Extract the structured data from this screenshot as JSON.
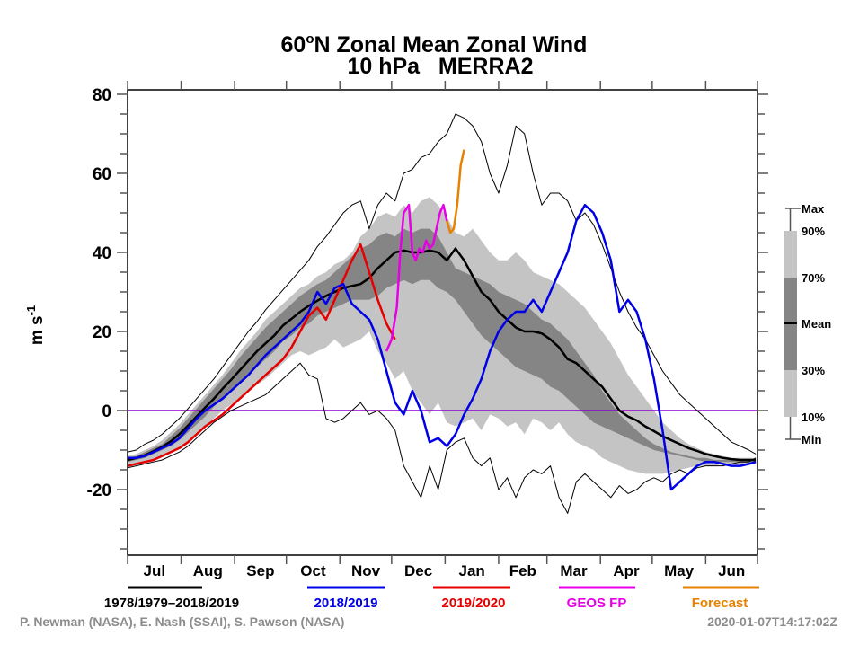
{
  "chart_data": {
    "type": "line",
    "title": "60°N Zonal Mean Zonal Wind",
    "title_line1_prefix": "60",
    "title_line1_degree": "o",
    "title_line1_suffix": "N Zonal Mean Zonal Wind",
    "title_line2": "10 hPa   MERRA2",
    "ylabel_base": "m s",
    "ylabel_exp": "-1",
    "ylim": [
      -36,
      81
    ],
    "yticks": [
      -20,
      0,
      20,
      40,
      60,
      80
    ],
    "yminor_step": 5,
    "x_unit": "day since Jul 1",
    "xlim": [
      0,
      365
    ],
    "months": [
      "Jul",
      "Aug",
      "Sep",
      "Oct",
      "Nov",
      "Dec",
      "Jan",
      "Feb",
      "Mar",
      "Apr",
      "May",
      "Jun"
    ],
    "month_starts": [
      0,
      31,
      62,
      92,
      123,
      153,
      184,
      215,
      243,
      274,
      304,
      335,
      365
    ],
    "zero_line_color": "#8a00d4",
    "band_colors": {
      "outer": "#c4c4c4",
      "inner": "#858585"
    },
    "x": [
      0,
      5,
      10,
      15,
      20,
      25,
      30,
      35,
      40,
      45,
      50,
      55,
      60,
      65,
      70,
      75,
      80,
      85,
      90,
      95,
      100,
      105,
      110,
      115,
      120,
      125,
      130,
      135,
      140,
      145,
      150,
      155,
      160,
      165,
      170,
      175,
      180,
      185,
      190,
      195,
      200,
      205,
      210,
      215,
      220,
      225,
      230,
      235,
      240,
      245,
      250,
      255,
      260,
      265,
      270,
      275,
      280,
      285,
      290,
      295,
      300,
      305,
      310,
      315,
      320,
      325,
      330,
      335,
      340,
      345,
      350,
      355,
      360,
      364
    ],
    "series": [
      {
        "name": "Max",
        "color": "#000000",
        "role": "max",
        "values": [
          -10.5,
          -10,
          -8.5,
          -7.5,
          -6,
          -4,
          -2,
          0.5,
          3,
          5.5,
          8,
          11,
          14,
          17,
          20,
          22.5,
          25.5,
          28,
          30.5,
          33,
          35.5,
          38,
          41.5,
          44,
          47,
          50,
          52,
          53,
          46,
          52,
          55,
          53,
          60,
          61,
          64,
          65,
          68,
          70,
          75,
          74,
          72,
          68,
          60,
          55,
          62,
          72,
          70,
          60,
          52,
          55,
          55,
          53,
          48,
          50,
          47,
          42,
          36,
          30,
          25,
          21,
          18,
          14,
          10,
          7,
          4,
          2,
          0,
          -2,
          -4,
          -6,
          -8,
          -9,
          -10,
          -11
        ]
      },
      {
        "name": "90%",
        "color": "#c4c4c4",
        "role": "p90",
        "values": [
          -11.5,
          -11,
          -10,
          -9,
          -7.5,
          -5.5,
          -3.5,
          -1,
          1.5,
          4,
          6.5,
          9,
          12,
          15,
          17.5,
          20,
          23,
          25,
          27,
          29,
          31,
          32,
          34,
          35,
          37,
          38,
          40,
          44,
          46,
          49,
          50,
          49,
          52,
          50,
          53,
          54,
          52,
          49,
          45,
          44,
          46,
          43,
          40,
          38,
          38,
          40,
          38,
          35,
          34,
          33,
          32,
          30,
          28,
          26,
          23,
          20,
          17,
          13,
          9,
          6,
          3,
          0,
          -3,
          -5,
          -7,
          -8.5,
          -9.5,
          -10.5,
          -11,
          -11.5,
          -12,
          -12,
          -12,
          -12
        ]
      },
      {
        "name": "70%",
        "color": "#858585",
        "role": "p70",
        "values": [
          -12,
          -11.5,
          -10.5,
          -9.5,
          -8.5,
          -6.5,
          -4.5,
          -2,
          0.5,
          3,
          5.5,
          8,
          10.5,
          13.5,
          16,
          18.5,
          21,
          23,
          25,
          27,
          29,
          30.5,
          32,
          33,
          35,
          37,
          39,
          41,
          42,
          44,
          45,
          44,
          46,
          45,
          46,
          46,
          44,
          40,
          36,
          35,
          34,
          33,
          32,
          30,
          29,
          28,
          27,
          25,
          23,
          22,
          20,
          18,
          15,
          12,
          9,
          5,
          2,
          -1,
          -3,
          -5,
          -7,
          -8.5,
          -9.5,
          -10.5,
          -11,
          -11.5,
          -12,
          -12,
          -12.5,
          -12.5,
          -12.5,
          -12.5,
          -12.5,
          -12.5
        ]
      },
      {
        "name": "Mean",
        "color": "#000000",
        "role": "mean",
        "values": [
          -12.5,
          -12,
          -11.3,
          -10.3,
          -9.2,
          -7.8,
          -6,
          -3.8,
          -1.5,
          0.8,
          3,
          5.5,
          7.8,
          10.2,
          12.6,
          15,
          17,
          19,
          21.5,
          23.2,
          25,
          26.5,
          27.8,
          29,
          30,
          31,
          31.5,
          32,
          33.5,
          36,
          38,
          40,
          40.5,
          40,
          40,
          40.5,
          40,
          38,
          41,
          38,
          34,
          30,
          28,
          25,
          23,
          21,
          20,
          20,
          19.5,
          18,
          16,
          13,
          12,
          10,
          8,
          6,
          3,
          0,
          -1.5,
          -2.5,
          -4,
          -5.2,
          -6.5,
          -7.5,
          -8.5,
          -9.5,
          -10.2,
          -11,
          -11.5,
          -12,
          -12.3,
          -12.5,
          -12.5,
          -12.5
        ]
      },
      {
        "name": "30%",
        "color": "#858585",
        "role": "p30",
        "values": [
          -13,
          -12.5,
          -12,
          -11,
          -10,
          -9,
          -7.5,
          -5.5,
          -3.5,
          -1.5,
          1,
          3,
          5,
          7,
          9,
          11,
          13,
          15,
          17.5,
          19,
          21,
          22,
          24,
          25,
          26,
          27,
          28,
          28,
          28,
          29,
          31,
          32,
          33,
          32,
          33,
          33,
          31,
          30,
          28,
          25,
          22,
          19,
          17,
          15,
          13,
          11,
          10,
          9,
          8,
          6,
          5,
          3,
          1,
          -1,
          -3,
          -4,
          -5,
          -6,
          -7,
          -8,
          -9,
          -10,
          -10.5,
          -11,
          -11.5,
          -12,
          -12.5,
          -13,
          -13,
          -13,
          -13,
          -13,
          -13,
          -13
        ]
      },
      {
        "name": "10%",
        "color": "#c4c4c4",
        "role": "p10",
        "values": [
          -14,
          -13.5,
          -13,
          -12.5,
          -11.5,
          -10.5,
          -9.5,
          -8,
          -6,
          -4,
          -2,
          0,
          1.5,
          3,
          5,
          6.5,
          8,
          10,
          12,
          14,
          15,
          14,
          15,
          16,
          18,
          16,
          17,
          18,
          20,
          15,
          12,
          8,
          10,
          5,
          2,
          -1,
          2,
          -3,
          -4,
          -3,
          -2,
          -5,
          -1,
          -2,
          -4,
          -3,
          -6,
          -2,
          -3,
          -5,
          -3,
          -6,
          -8,
          -9,
          -10,
          -12,
          -13,
          -14,
          -15,
          -15.5,
          -16,
          -16,
          -16,
          -15.5,
          -15,
          -14.5,
          -14,
          -14,
          -14,
          -13.5,
          -13.5,
          -13.5,
          -13.5,
          -13.5
        ]
      },
      {
        "name": "Min",
        "color": "#000000",
        "role": "min",
        "values": [
          -14.5,
          -14,
          -13.5,
          -13,
          -12.5,
          -11.5,
          -10.5,
          -9,
          -7,
          -5,
          -3,
          -1.5,
          0,
          1,
          2,
          3,
          4,
          6,
          8,
          10,
          12,
          9,
          8,
          -2,
          -3,
          -2,
          0,
          2,
          -1,
          0,
          -2,
          -5,
          -14,
          -18,
          -22,
          -14,
          -20,
          -10,
          -8,
          -7,
          -12,
          -14,
          -12,
          -20,
          -17,
          -22,
          -17,
          -15,
          -16,
          -14,
          -22,
          -26,
          -18,
          -16,
          -18,
          -20,
          -22,
          -19,
          -21,
          -20,
          -18,
          -17,
          -18,
          -16,
          -15,
          -16,
          -14.5,
          -14,
          -14,
          -14,
          -13.5,
          -13,
          -13,
          -12
        ]
      },
      {
        "name": "2018/2019",
        "color": "#0000e6",
        "role": "year",
        "values": [
          -12,
          -12,
          -11.5,
          -10.5,
          -9.5,
          -8.5,
          -7,
          -4.5,
          -2,
          0,
          1.5,
          3,
          5,
          7,
          9,
          11.5,
          14,
          16,
          18,
          20,
          22,
          25,
          30,
          27,
          31,
          32,
          27,
          25,
          23,
          18,
          10,
          2,
          -1,
          5,
          0,
          -8,
          -7,
          -9,
          -6,
          -1,
          3,
          8,
          15,
          20,
          23,
          25,
          25,
          28,
          25,
          30,
          35,
          40,
          48,
          52,
          50,
          45,
          38,
          25,
          28,
          25,
          18,
          8,
          -5,
          -20,
          -18,
          -16,
          -14,
          -13,
          -13,
          -13.5,
          -14,
          -14,
          -13.5,
          -13
        ]
      },
      {
        "name": "2019/2020",
        "color": "#e60000",
        "role": "year",
        "values": [
          -14,
          -13.5,
          -13,
          -12.5,
          -11.5,
          -10.5,
          -9.5,
          -8,
          -6,
          -4,
          -2.5,
          -1,
          1,
          3,
          5,
          7,
          9,
          11,
          13,
          16,
          20,
          24,
          26,
          23,
          28,
          33,
          38,
          42,
          35,
          28,
          22,
          18
        ]
      },
      {
        "name": "GEOS FP",
        "color": "#e600e6",
        "role": "year",
        "x": [
          150,
          153,
          156,
          158,
          160,
          163,
          165,
          167,
          169,
          171,
          173,
          175,
          177,
          179,
          181,
          183,
          185
        ],
        "values": [
          15,
          18,
          26,
          40,
          50,
          52,
          40,
          38,
          41,
          40,
          43,
          41,
          42,
          46,
          50,
          52,
          48
        ]
      },
      {
        "name": "Forecast",
        "color": "#e68200",
        "role": "year",
        "x": [
          185,
          187,
          189,
          191,
          193,
          195
        ],
        "values": [
          48,
          45,
          46,
          52,
          62,
          66
        ]
      }
    ],
    "legend": [
      {
        "label": "1978/1979–2018/2019",
        "color": "#000000"
      },
      {
        "label": "2018/2019",
        "color": "#0000e6"
      },
      {
        "label": "2019/2020",
        "color": "#e60000"
      },
      {
        "label": "GEOS FP",
        "color": "#e600e6"
      },
      {
        "label": "Forecast",
        "color": "#e68200"
      }
    ],
    "key": [
      "Max",
      "90%",
      "70%",
      "Mean",
      "30%",
      "10%",
      "Min"
    ],
    "credit": "P. Newman (NASA), E. Nash (SSAI), S. Pawson (NASA)",
    "timestamp": "2020-01-07T14:17:02Z"
  }
}
